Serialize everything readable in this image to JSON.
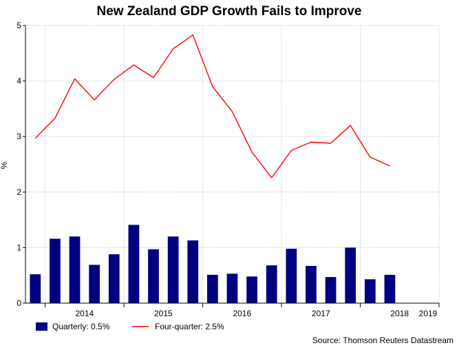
{
  "chart_data": {
    "type": "bar+line",
    "title": "New Zealand GDP Growth Fails to Improve",
    "ylabel": "%",
    "xlabel": "",
    "ylim": [
      0,
      5
    ],
    "yticks": [
      "0",
      "1",
      "2",
      "3",
      "4",
      "5"
    ],
    "x_tick_labels": [
      "2014",
      "2015",
      "2016",
      "2017",
      "2018",
      "2019"
    ],
    "x_range_quarters": [
      "2013 Q4",
      "2019 Q2"
    ],
    "grid": true,
    "categories": [
      "2013 Q4",
      "2014 Q1",
      "2014 Q2",
      "2014 Q3",
      "2014 Q4",
      "2015 Q1",
      "2015 Q2",
      "2015 Q3",
      "2015 Q4",
      "2016 Q1",
      "2016 Q2",
      "2016 Q3",
      "2016 Q4",
      "2017 Q1",
      "2017 Q2",
      "2017 Q3",
      "2017 Q4",
      "2018 Q1",
      "2018 Q2",
      "2018 Q3",
      "2018 Q4"
    ],
    "series": [
      {
        "name": "Quarterly: 0.5%",
        "type": "bar",
        "color": "#000080",
        "values": [
          0.52,
          1.16,
          1.2,
          0.69,
          0.88,
          1.41,
          0.97,
          1.2,
          1.13,
          0.51,
          0.53,
          0.48,
          0.68,
          0.98,
          0.67,
          0.47,
          1.0,
          0.43,
          0.51,
          null,
          null
        ]
      },
      {
        "name": "Four-quarter: 2.5%",
        "type": "line",
        "color": "#ff0000",
        "values": [
          2.97,
          3.33,
          4.04,
          3.66,
          4.03,
          4.29,
          4.06,
          4.58,
          4.83,
          3.9,
          3.45,
          2.72,
          2.26,
          2.75,
          2.9,
          2.88,
          3.2,
          2.63,
          2.47,
          null,
          null
        ]
      }
    ],
    "legend_position": "bottom-left",
    "source": "Source: Thomson Reuters Datastream"
  }
}
